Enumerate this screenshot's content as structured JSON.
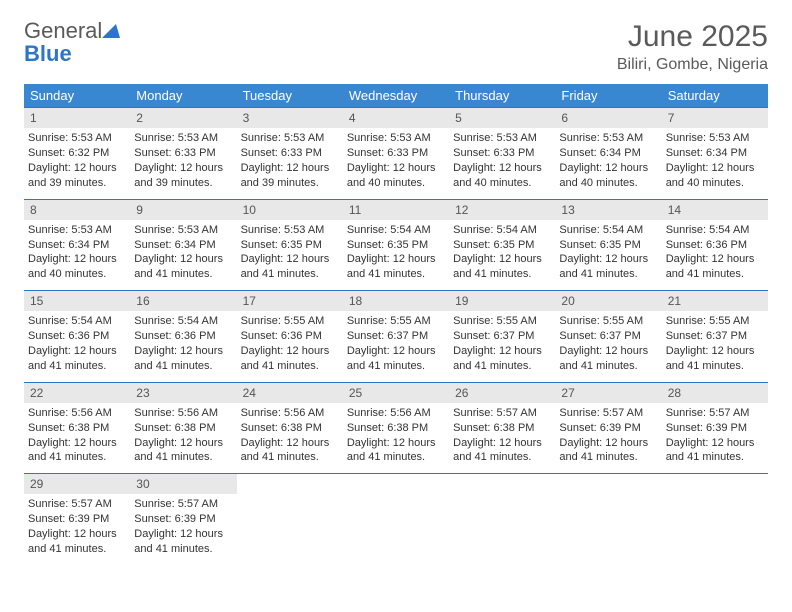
{
  "logo": {
    "text_gray": "General",
    "text_blue": "Blue",
    "triangle_color": "#2e75c9"
  },
  "title": "June 2025",
  "location": "Biliri, Gombe, Nigeria",
  "colors": {
    "header_bg": "#3a87d1",
    "header_text": "#ffffff",
    "daynum_bg": "#e8e8e8",
    "rule": "#2e75c9",
    "text": "#333333",
    "title_text": "#5a5a5a"
  },
  "day_headers": [
    "Sunday",
    "Monday",
    "Tuesday",
    "Wednesday",
    "Thursday",
    "Friday",
    "Saturday"
  ],
  "weeks": [
    [
      {
        "n": "1",
        "sr": "Sunrise: 5:53 AM",
        "ss": "Sunset: 6:32 PM",
        "dl1": "Daylight: 12 hours",
        "dl2": "and 39 minutes."
      },
      {
        "n": "2",
        "sr": "Sunrise: 5:53 AM",
        "ss": "Sunset: 6:33 PM",
        "dl1": "Daylight: 12 hours",
        "dl2": "and 39 minutes."
      },
      {
        "n": "3",
        "sr": "Sunrise: 5:53 AM",
        "ss": "Sunset: 6:33 PM",
        "dl1": "Daylight: 12 hours",
        "dl2": "and 39 minutes."
      },
      {
        "n": "4",
        "sr": "Sunrise: 5:53 AM",
        "ss": "Sunset: 6:33 PM",
        "dl1": "Daylight: 12 hours",
        "dl2": "and 40 minutes."
      },
      {
        "n": "5",
        "sr": "Sunrise: 5:53 AM",
        "ss": "Sunset: 6:33 PM",
        "dl1": "Daylight: 12 hours",
        "dl2": "and 40 minutes."
      },
      {
        "n": "6",
        "sr": "Sunrise: 5:53 AM",
        "ss": "Sunset: 6:34 PM",
        "dl1": "Daylight: 12 hours",
        "dl2": "and 40 minutes."
      },
      {
        "n": "7",
        "sr": "Sunrise: 5:53 AM",
        "ss": "Sunset: 6:34 PM",
        "dl1": "Daylight: 12 hours",
        "dl2": "and 40 minutes."
      }
    ],
    [
      {
        "n": "8",
        "sr": "Sunrise: 5:53 AM",
        "ss": "Sunset: 6:34 PM",
        "dl1": "Daylight: 12 hours",
        "dl2": "and 40 minutes."
      },
      {
        "n": "9",
        "sr": "Sunrise: 5:53 AM",
        "ss": "Sunset: 6:34 PM",
        "dl1": "Daylight: 12 hours",
        "dl2": "and 41 minutes."
      },
      {
        "n": "10",
        "sr": "Sunrise: 5:53 AM",
        "ss": "Sunset: 6:35 PM",
        "dl1": "Daylight: 12 hours",
        "dl2": "and 41 minutes."
      },
      {
        "n": "11",
        "sr": "Sunrise: 5:54 AM",
        "ss": "Sunset: 6:35 PM",
        "dl1": "Daylight: 12 hours",
        "dl2": "and 41 minutes."
      },
      {
        "n": "12",
        "sr": "Sunrise: 5:54 AM",
        "ss": "Sunset: 6:35 PM",
        "dl1": "Daylight: 12 hours",
        "dl2": "and 41 minutes."
      },
      {
        "n": "13",
        "sr": "Sunrise: 5:54 AM",
        "ss": "Sunset: 6:35 PM",
        "dl1": "Daylight: 12 hours",
        "dl2": "and 41 minutes."
      },
      {
        "n": "14",
        "sr": "Sunrise: 5:54 AM",
        "ss": "Sunset: 6:36 PM",
        "dl1": "Daylight: 12 hours",
        "dl2": "and 41 minutes."
      }
    ],
    [
      {
        "n": "15",
        "sr": "Sunrise: 5:54 AM",
        "ss": "Sunset: 6:36 PM",
        "dl1": "Daylight: 12 hours",
        "dl2": "and 41 minutes."
      },
      {
        "n": "16",
        "sr": "Sunrise: 5:54 AM",
        "ss": "Sunset: 6:36 PM",
        "dl1": "Daylight: 12 hours",
        "dl2": "and 41 minutes."
      },
      {
        "n": "17",
        "sr": "Sunrise: 5:55 AM",
        "ss": "Sunset: 6:36 PM",
        "dl1": "Daylight: 12 hours",
        "dl2": "and 41 minutes."
      },
      {
        "n": "18",
        "sr": "Sunrise: 5:55 AM",
        "ss": "Sunset: 6:37 PM",
        "dl1": "Daylight: 12 hours",
        "dl2": "and 41 minutes."
      },
      {
        "n": "19",
        "sr": "Sunrise: 5:55 AM",
        "ss": "Sunset: 6:37 PM",
        "dl1": "Daylight: 12 hours",
        "dl2": "and 41 minutes."
      },
      {
        "n": "20",
        "sr": "Sunrise: 5:55 AM",
        "ss": "Sunset: 6:37 PM",
        "dl1": "Daylight: 12 hours",
        "dl2": "and 41 minutes."
      },
      {
        "n": "21",
        "sr": "Sunrise: 5:55 AM",
        "ss": "Sunset: 6:37 PM",
        "dl1": "Daylight: 12 hours",
        "dl2": "and 41 minutes."
      }
    ],
    [
      {
        "n": "22",
        "sr": "Sunrise: 5:56 AM",
        "ss": "Sunset: 6:38 PM",
        "dl1": "Daylight: 12 hours",
        "dl2": "and 41 minutes."
      },
      {
        "n": "23",
        "sr": "Sunrise: 5:56 AM",
        "ss": "Sunset: 6:38 PM",
        "dl1": "Daylight: 12 hours",
        "dl2": "and 41 minutes."
      },
      {
        "n": "24",
        "sr": "Sunrise: 5:56 AM",
        "ss": "Sunset: 6:38 PM",
        "dl1": "Daylight: 12 hours",
        "dl2": "and 41 minutes."
      },
      {
        "n": "25",
        "sr": "Sunrise: 5:56 AM",
        "ss": "Sunset: 6:38 PM",
        "dl1": "Daylight: 12 hours",
        "dl2": "and 41 minutes."
      },
      {
        "n": "26",
        "sr": "Sunrise: 5:57 AM",
        "ss": "Sunset: 6:38 PM",
        "dl1": "Daylight: 12 hours",
        "dl2": "and 41 minutes."
      },
      {
        "n": "27",
        "sr": "Sunrise: 5:57 AM",
        "ss": "Sunset: 6:39 PM",
        "dl1": "Daylight: 12 hours",
        "dl2": "and 41 minutes."
      },
      {
        "n": "28",
        "sr": "Sunrise: 5:57 AM",
        "ss": "Sunset: 6:39 PM",
        "dl1": "Daylight: 12 hours",
        "dl2": "and 41 minutes."
      }
    ],
    [
      {
        "n": "29",
        "sr": "Sunrise: 5:57 AM",
        "ss": "Sunset: 6:39 PM",
        "dl1": "Daylight: 12 hours",
        "dl2": "and 41 minutes."
      },
      {
        "n": "30",
        "sr": "Sunrise: 5:57 AM",
        "ss": "Sunset: 6:39 PM",
        "dl1": "Daylight: 12 hours",
        "dl2": "and 41 minutes."
      },
      {
        "empty": true
      },
      {
        "empty": true
      },
      {
        "empty": true
      },
      {
        "empty": true
      },
      {
        "empty": true
      }
    ]
  ]
}
